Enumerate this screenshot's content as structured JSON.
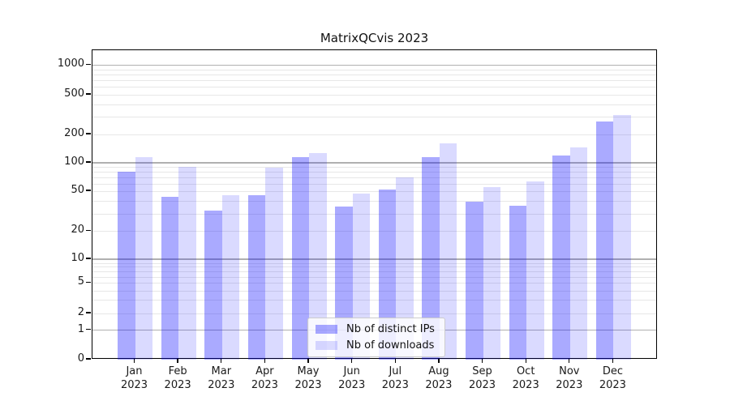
{
  "title": "MatrixQCvis 2023",
  "chart_data": {
    "type": "bar",
    "title": "MatrixQCvis 2023",
    "categories": [
      "Jan",
      "Feb",
      "Mar",
      "Apr",
      "May",
      "Jun",
      "Jul",
      "Aug",
      "Sep",
      "Oct",
      "Nov",
      "Dec"
    ],
    "category_sub": "2023",
    "series": [
      {
        "name": "Nb of distinct IPs",
        "color": "rgba(0,0,255,0.335)",
        "values": [
          80,
          44,
          32,
          46,
          114,
          35,
          52,
          114,
          39,
          36,
          120,
          270
        ]
      },
      {
        "name": "Nb of downloads",
        "color": "rgba(0,0,255,0.145)",
        "values": [
          115,
          90,
          46,
          89,
          127,
          47,
          70,
          160,
          55,
          63,
          145,
          314
        ]
      }
    ],
    "yscale": "symlog",
    "ylim": [
      0,
      1400
    ],
    "yticks": [
      0,
      1,
      2,
      5,
      10,
      20,
      50,
      100,
      200,
      500,
      1000
    ],
    "y_major_gridlines": [
      1,
      10,
      100,
      1000
    ],
    "y_minor_gridlines": [
      2,
      3,
      4,
      5,
      6,
      7,
      8,
      9,
      20,
      30,
      40,
      50,
      60,
      70,
      80,
      90,
      200,
      300,
      400,
      500,
      600,
      700,
      800,
      900
    ],
    "grid": "horizontal",
    "legend_position": "lower center",
    "colors": {
      "major_grid": "#b0b0b0",
      "minor_grid": "#e7e7e7",
      "spine": "#000000",
      "text": "#1a1a1a"
    }
  }
}
